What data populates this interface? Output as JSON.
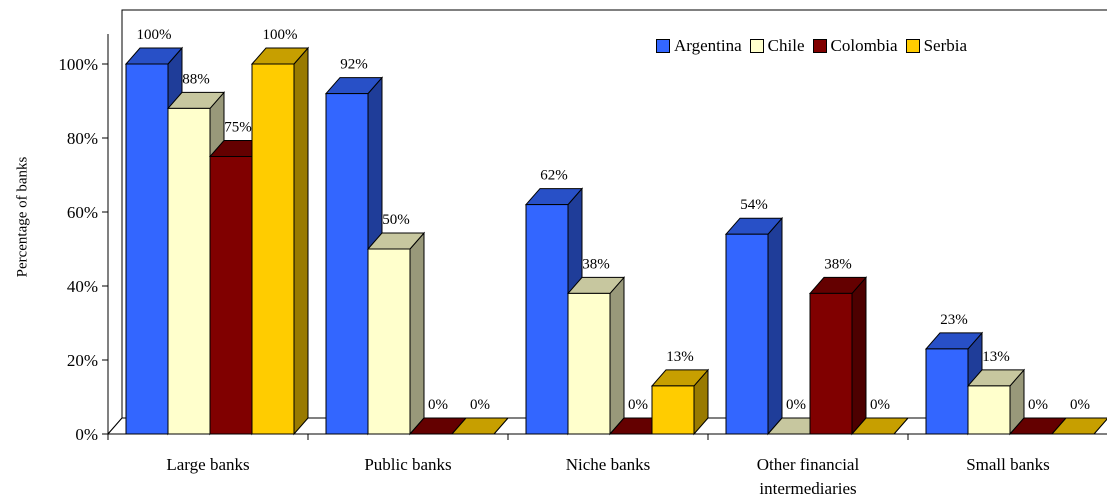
{
  "chart_data": {
    "type": "bar",
    "title": "",
    "xlabel": "",
    "ylabel": "Percentage of banks",
    "categories": [
      "Large banks",
      "Public banks",
      "Niche banks",
      "Other financial intermediaries",
      "Small banks"
    ],
    "category_lines": [
      [
        "Large banks"
      ],
      [
        "Public banks"
      ],
      [
        "Niche banks"
      ],
      [
        "Other financial",
        "intermediaries"
      ],
      [
        "Small banks"
      ]
    ],
    "ylim": [
      0,
      100
    ],
    "yticks": [
      "0%",
      "20%",
      "40%",
      "60%",
      "80%",
      "100%"
    ],
    "grid": false,
    "legend_position": "top-right",
    "series": [
      {
        "name": "Argentina",
        "color": "#3366FF",
        "values": [
          100,
          92,
          62,
          54,
          23
        ],
        "labels": [
          "100%",
          "92%",
          "62%",
          "54%",
          "23%"
        ]
      },
      {
        "name": "Chile",
        "color": "#FFFFCC",
        "values": [
          88,
          50,
          38,
          0,
          13
        ],
        "labels": [
          "88%",
          "50%",
          "38%",
          "0%",
          "13%"
        ]
      },
      {
        "name": "Colombia",
        "color": "#800000",
        "values": [
          75,
          0,
          0,
          38,
          0
        ],
        "labels": [
          "75%",
          "0%",
          "0%",
          "38%",
          "0%"
        ]
      },
      {
        "name": "Serbia",
        "color": "#FFCC00",
        "values": [
          100,
          0,
          13,
          0,
          0
        ],
        "labels": [
          "100%",
          "0%",
          "13%",
          "0%",
          "0%"
        ]
      }
    ]
  }
}
